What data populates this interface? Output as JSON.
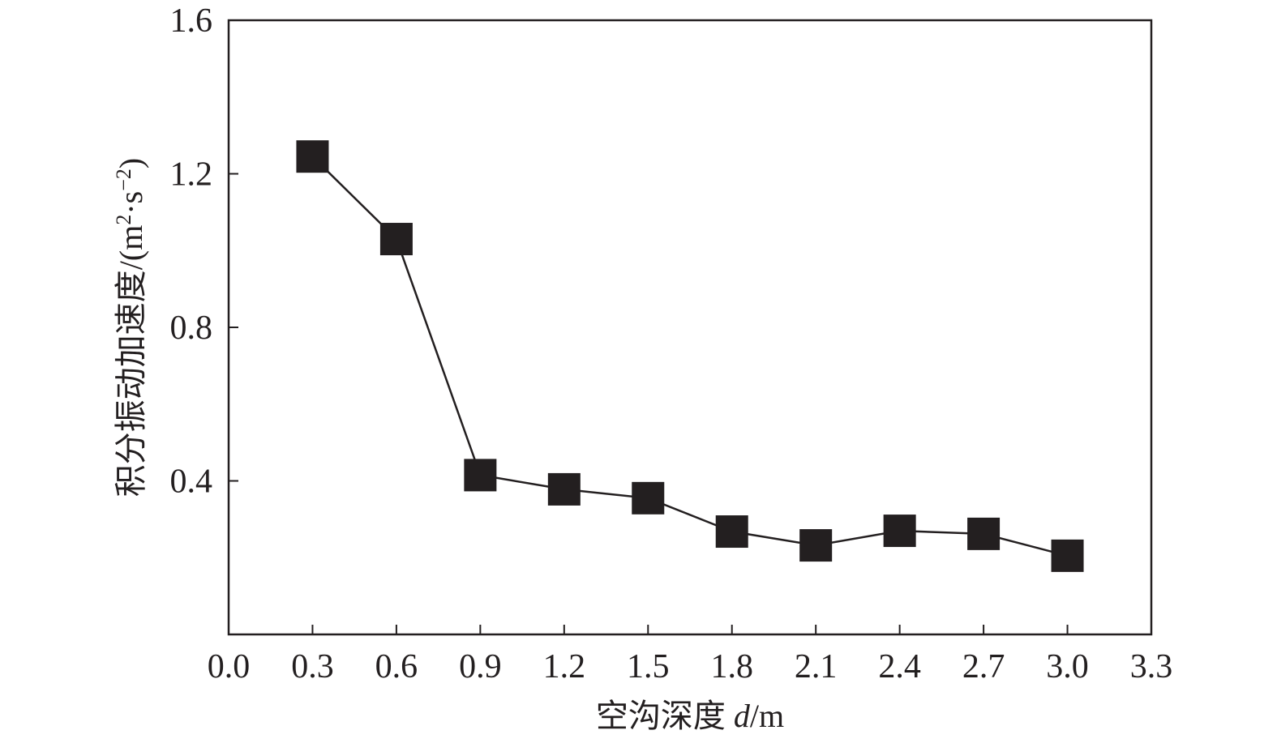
{
  "chart_data": {
    "type": "line",
    "xlabel_prefix": "空沟深度 ",
    "xlabel_var": "d",
    "xlabel_unit": "/m",
    "ylabel_main": "积分振动加速度/(m",
    "ylabel_sup1": "2",
    "ylabel_mid": "·s",
    "ylabel_sup2": "−2",
    "ylabel_end": ")",
    "xlim": [
      0.0,
      3.3
    ],
    "ylim": [
      0.0,
      1.6
    ],
    "x_ticks": [
      "0.0",
      "0.3",
      "0.6",
      "0.9",
      "1.2",
      "1.5",
      "1.8",
      "2.1",
      "2.4",
      "2.7",
      "3.0",
      "3.3"
    ],
    "x_tick_values": [
      0.0,
      0.3,
      0.6,
      0.9,
      1.2,
      1.5,
      1.8,
      2.1,
      2.4,
      2.7,
      3.0,
      3.3
    ],
    "y_ticks": [
      "0.4",
      "0.8",
      "1.2",
      "1.6"
    ],
    "y_tick_values": [
      0.4,
      0.8,
      1.2,
      1.6
    ],
    "series": [
      {
        "marker": "square",
        "color": "#231f20",
        "x": [
          0.3,
          0.6,
          0.9,
          1.2,
          1.5,
          1.8,
          2.1,
          2.4,
          2.7,
          3.0
        ],
        "y": [
          1.245,
          1.03,
          0.415,
          0.378,
          0.355,
          0.268,
          0.232,
          0.27,
          0.262,
          0.205
        ]
      }
    ],
    "grid": false,
    "legend": "none"
  }
}
